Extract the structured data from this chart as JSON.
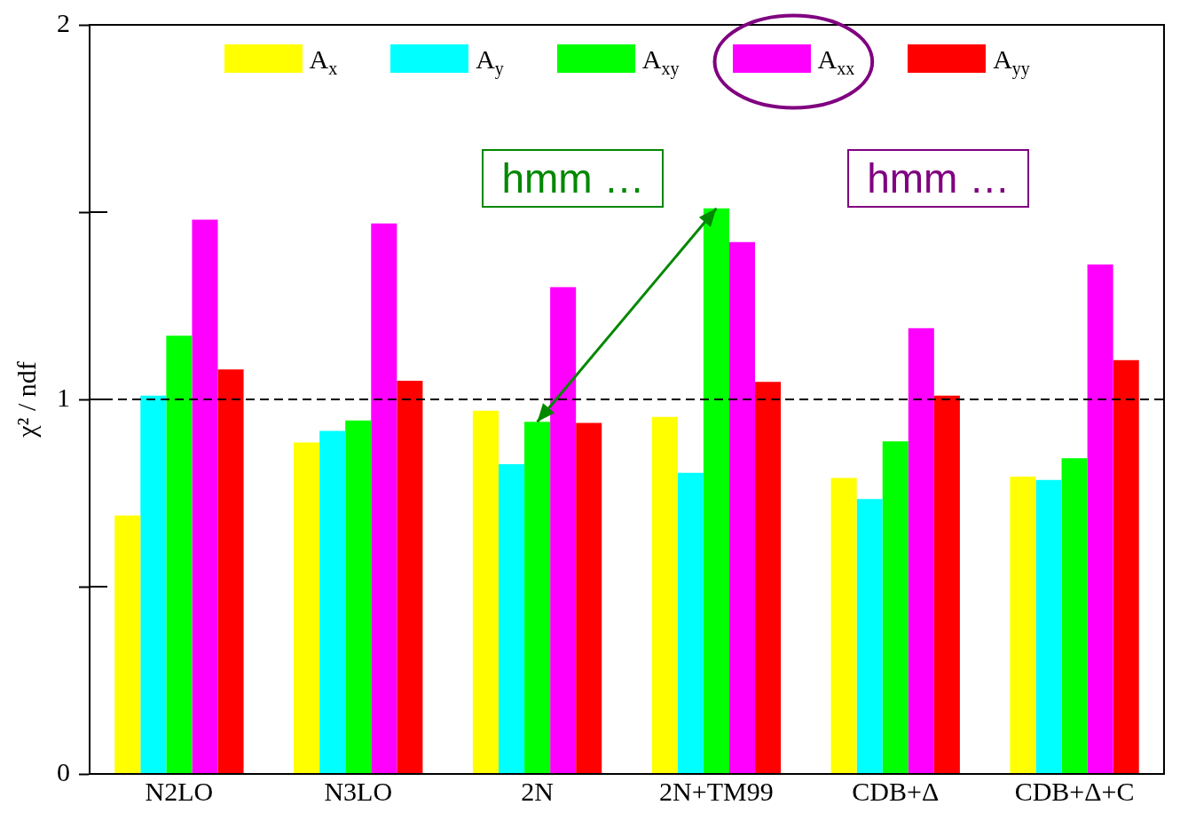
{
  "chart_data": {
    "type": "bar",
    "categories": [
      "N2LO",
      "N3LO",
      "2N",
      "2N+TM99",
      "CDB+Δ",
      "CDB+Δ+C"
    ],
    "series": [
      {
        "name": "A$_{x}$",
        "color": "#ffff00",
        "values": [
          0.69,
          0.885,
          0.97,
          0.953,
          0.79,
          0.794
        ]
      },
      {
        "name": "A$_{y}$",
        "color": "#00ffff",
        "values": [
          1.01,
          0.916,
          0.827,
          0.804,
          0.734,
          0.785
        ]
      },
      {
        "name": "A$_{xy}$",
        "color": "#00ff00",
        "values": [
          1.17,
          0.944,
          0.94,
          1.51,
          0.888,
          0.843
        ]
      },
      {
        "name": "A$_{xx}$",
        "color": "#ff00ff",
        "values": [
          1.48,
          1.47,
          1.3,
          1.42,
          1.19,
          1.36
        ]
      },
      {
        "name": "A$_{yy}$",
        "color": "#ff0000",
        "values": [
          1.08,
          1.05,
          0.937,
          1.047,
          1.01,
          1.105
        ]
      }
    ],
    "ylabel": "χ² / ndf",
    "ylim": [
      0,
      2
    ],
    "yticks": [
      0,
      {
        "value": 0.5,
        "label": null
      },
      1,
      {
        "value": 1.5,
        "label": null
      },
      2
    ],
    "ref_lines": [
      {
        "axis": "y",
        "value": 1,
        "color": "#000000",
        "line_style": "dashed"
      }
    ],
    "annotations": [
      "hmm …",
      "hmm …"
    ],
    "legend": "top",
    "grid": false
  }
}
